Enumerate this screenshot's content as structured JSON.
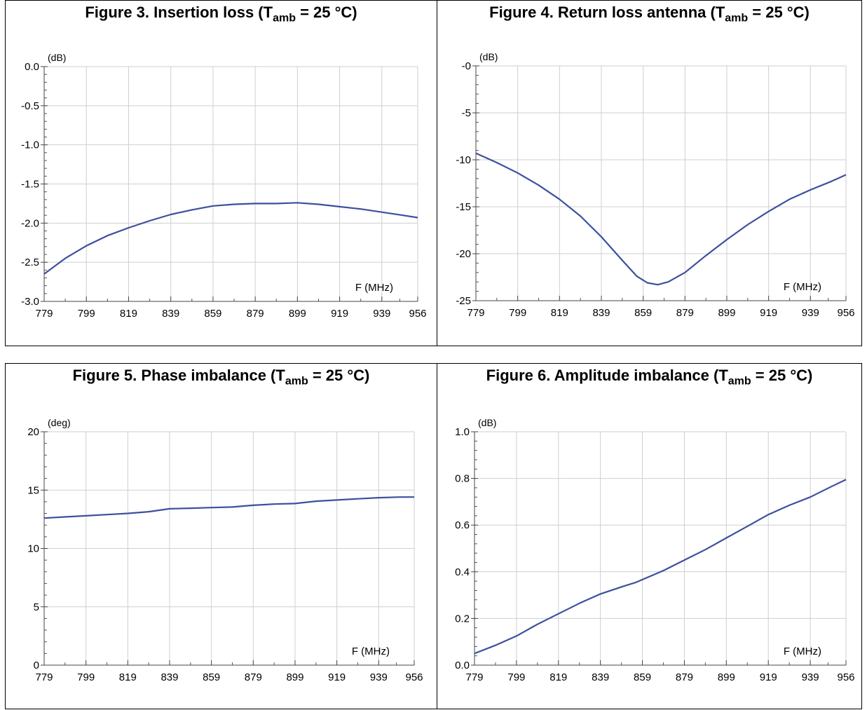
{
  "figures": [
    {
      "title_prefix": "Figure 3. Insertion loss (T",
      "title_sub": "amb",
      "title_suffix": " = 25 °C)",
      "unit_label": "(dB)",
      "x_axis_label": "F (MHz)",
      "chart_data": {
        "type": "line",
        "xlim": [
          779,
          956
        ],
        "ylim": [
          -3.0,
          0.0
        ],
        "x_ticks": [
          779,
          799,
          819,
          839,
          859,
          879,
          899,
          919,
          939,
          956
        ],
        "x_tick_labels": [
          "779",
          "799",
          "819",
          "839",
          "859",
          "879",
          "899",
          "919",
          "939",
          "956"
        ],
        "y_ticks": [
          0.0,
          -0.5,
          -1.0,
          -1.5,
          -2.0,
          -2.5,
          -3.0
        ],
        "y_tick_labels": [
          "0.0",
          "-0.5",
          "-1.0",
          "-1.5",
          "-2.0",
          "-2.5",
          "-3.0"
        ],
        "grid": true,
        "series": [
          {
            "color": "#3d4f9e",
            "points": [
              [
                779,
                -2.65
              ],
              [
                789,
                -2.45
              ],
              [
                799,
                -2.29
              ],
              [
                809,
                -2.16
              ],
              [
                819,
                -2.06
              ],
              [
                829,
                -1.97
              ],
              [
                839,
                -1.89
              ],
              [
                849,
                -1.83
              ],
              [
                859,
                -1.78
              ],
              [
                869,
                -1.76
              ],
              [
                879,
                -1.75
              ],
              [
                889,
                -1.75
              ],
              [
                899,
                -1.74
              ],
              [
                909,
                -1.76
              ],
              [
                919,
                -1.79
              ],
              [
                929,
                -1.82
              ],
              [
                939,
                -1.86
              ],
              [
                949,
                -1.9
              ],
              [
                956,
                -1.93
              ]
            ]
          }
        ]
      }
    },
    {
      "title_prefix": "Figure 4. Return loss antenna (T",
      "title_sub": "amb",
      "title_suffix": " = 25 °C)",
      "unit_label": "(dB)",
      "x_axis_label": "F (MHz)",
      "chart_data": {
        "type": "line",
        "xlim": [
          779,
          956
        ],
        "ylim": [
          -25,
          0
        ],
        "x_ticks": [
          779,
          799,
          819,
          839,
          859,
          879,
          899,
          919,
          939,
          956
        ],
        "x_tick_labels": [
          "779",
          "799",
          "819",
          "839",
          "859",
          "879",
          "899",
          "919",
          "939",
          "956"
        ],
        "y_ticks": [
          0,
          -5,
          -10,
          -15,
          -20,
          -25
        ],
        "y_tick_labels": [
          "-0",
          "-5",
          "-10",
          "-15",
          "-20",
          "-25"
        ],
        "grid": true,
        "series": [
          {
            "color": "#3d4f9e",
            "points": [
              [
                779,
                -9.3
              ],
              [
                789,
                -10.3
              ],
              [
                799,
                -11.4
              ],
              [
                809,
                -12.7
              ],
              [
                819,
                -14.2
              ],
              [
                829,
                -16.0
              ],
              [
                839,
                -18.2
              ],
              [
                849,
                -20.7
              ],
              [
                856,
                -22.4
              ],
              [
                861,
                -23.1
              ],
              [
                866,
                -23.3
              ],
              [
                871,
                -23.0
              ],
              [
                879,
                -22.0
              ],
              [
                889,
                -20.2
              ],
              [
                899,
                -18.5
              ],
              [
                909,
                -16.9
              ],
              [
                919,
                -15.5
              ],
              [
                929,
                -14.2
              ],
              [
                939,
                -13.2
              ],
              [
                949,
                -12.3
              ],
              [
                956,
                -11.6
              ]
            ]
          }
        ]
      }
    },
    {
      "title_prefix": "Figure 5. Phase imbalance (T",
      "title_sub": "amb",
      "title_suffix": " = 25 °C)",
      "unit_label": "(deg)",
      "x_axis_label": "F (MHz)",
      "chart_data": {
        "type": "line",
        "xlim": [
          779,
          956
        ],
        "ylim": [
          0,
          20
        ],
        "x_ticks": [
          779,
          799,
          819,
          839,
          859,
          879,
          899,
          919,
          939,
          956
        ],
        "x_tick_labels": [
          "779",
          "799",
          "819",
          "839",
          "859",
          "879",
          "899",
          "919",
          "939",
          "956"
        ],
        "y_ticks": [
          20,
          15,
          10,
          5,
          0
        ],
        "y_tick_labels": [
          "20",
          "15",
          "10",
          "5",
          "0"
        ],
        "grid": true,
        "series": [
          {
            "color": "#3d4f9e",
            "points": [
              [
                779,
                12.6
              ],
              [
                789,
                12.7
              ],
              [
                799,
                12.8
              ],
              [
                809,
                12.9
              ],
              [
                819,
                13.0
              ],
              [
                829,
                13.15
              ],
              [
                839,
                13.4
              ],
              [
                849,
                13.45
              ],
              [
                859,
                13.5
              ],
              [
                869,
                13.55
              ],
              [
                879,
                13.7
              ],
              [
                889,
                13.8
              ],
              [
                899,
                13.85
              ],
              [
                909,
                14.05
              ],
              [
                919,
                14.15
              ],
              [
                929,
                14.25
              ],
              [
                939,
                14.35
              ],
              [
                949,
                14.4
              ],
              [
                956,
                14.4
              ]
            ]
          }
        ]
      }
    },
    {
      "title_prefix": "Figure 6. Amplitude imbalance (T",
      "title_sub": "amb",
      "title_suffix": " = 25 °C)",
      "unit_label": "(dB)",
      "x_axis_label": "F (MHz)",
      "chart_data": {
        "type": "line",
        "xlim": [
          779,
          956
        ],
        "ylim": [
          0.0,
          1.0
        ],
        "x_ticks": [
          779,
          799,
          819,
          839,
          859,
          879,
          899,
          919,
          939,
          956
        ],
        "x_tick_labels": [
          "779",
          "799",
          "819",
          "839",
          "859",
          "879",
          "899",
          "919",
          "939",
          "956"
        ],
        "y_ticks": [
          1.0,
          0.8,
          0.6,
          0.4,
          0.2,
          0.0
        ],
        "y_tick_labels": [
          "1.0",
          "0.8",
          "0.6",
          "0.4",
          "0.2",
          "0.0"
        ],
        "grid": true,
        "series": [
          {
            "color": "#3d4f9e",
            "points": [
              [
                779,
                0.05
              ],
              [
                789,
                0.085
              ],
              [
                799,
                0.125
              ],
              [
                809,
                0.175
              ],
              [
                819,
                0.22
              ],
              [
                829,
                0.265
              ],
              [
                839,
                0.305
              ],
              [
                849,
                0.335
              ],
              [
                856,
                0.355
              ],
              [
                869,
                0.405
              ],
              [
                879,
                0.45
              ],
              [
                889,
                0.495
              ],
              [
                899,
                0.545
              ],
              [
                909,
                0.595
              ],
              [
                919,
                0.645
              ],
              [
                929,
                0.685
              ],
              [
                939,
                0.72
              ],
              [
                949,
                0.765
              ],
              [
                956,
                0.795
              ]
            ]
          }
        ]
      }
    }
  ]
}
